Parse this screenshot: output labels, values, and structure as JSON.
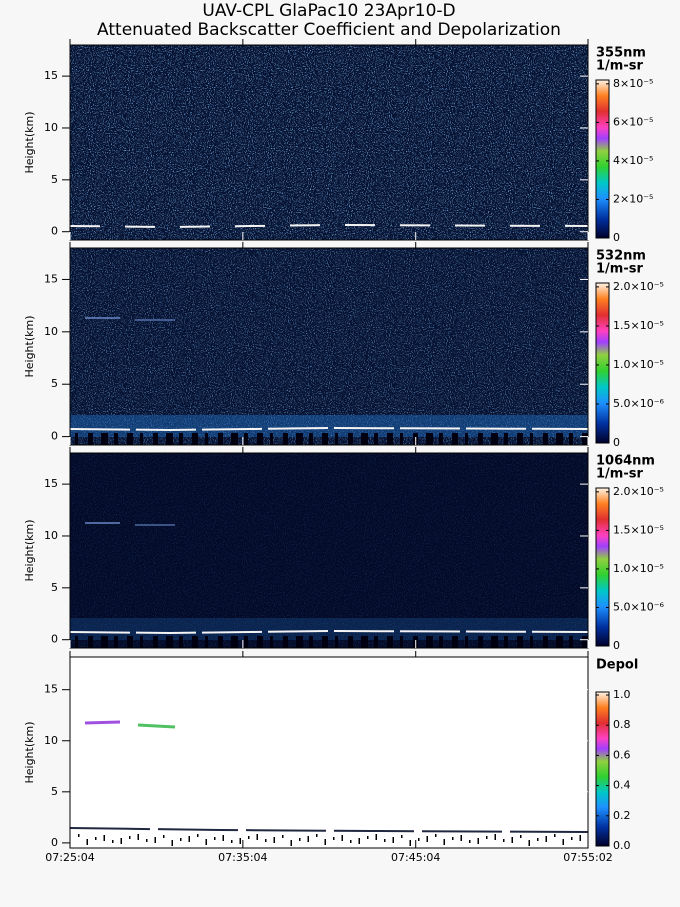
{
  "title": [
    "UAV-CPL GlaPac10 23Apr10-D",
    "Attenuated Backscatter Coefficient and Depolarization"
  ],
  "x_axis": {
    "xlim": [
      "07:25:04",
      "07:55:02"
    ],
    "xticks": [
      "07:25:04",
      "07:35:04",
      "07:45:04",
      "07:55:02"
    ]
  },
  "chart_data": [
    {
      "type": "curtain",
      "ylabel": "Height(km)",
      "ylim": [
        -0.8,
        18
      ],
      "yticks": [
        0,
        5,
        10,
        15
      ],
      "colorbar": {
        "title": [
          "355nm",
          "1/m-sr"
        ],
        "lim": [
          0,
          8.2e-05
        ],
        "ticks": [
          0,
          {
            "value": 2e-05,
            "label": "2×10⁻⁵"
          },
          {
            "value": 4e-05,
            "label": "4×10⁻⁵"
          },
          {
            "value": 6e-05,
            "label": "6×10⁻⁵"
          },
          {
            "value": 8e-05,
            "label": "8×10⁻⁵"
          }
        ]
      }
    },
    {
      "type": "curtain",
      "ylabel": "Height(km)",
      "ylim": [
        -0.8,
        18
      ],
      "yticks": [
        0,
        5,
        10,
        15
      ],
      "colorbar": {
        "title": [
          "532nm",
          "1/m-sr"
        ],
        "lim": [
          0,
          2.05e-05
        ],
        "ticks": [
          0,
          {
            "value": 5e-06,
            "label": "5.0×10⁻⁶"
          },
          {
            "value": 1e-05,
            "label": "1.0×10⁻⁵"
          },
          {
            "value": 1.5e-05,
            "label": "1.5×10⁻⁵"
          },
          {
            "value": 2e-05,
            "label": "2.0×10⁻⁵"
          }
        ]
      }
    },
    {
      "type": "curtain",
      "ylabel": "Height(km)",
      "ylim": [
        -0.8,
        18
      ],
      "yticks": [
        0,
        5,
        10,
        15
      ],
      "colorbar": {
        "title": [
          "1064nm",
          "1/m-sr"
        ],
        "lim": [
          0,
          2.05e-05
        ],
        "ticks": [
          0,
          {
            "value": 5e-06,
            "label": "5.0×10⁻⁶"
          },
          {
            "value": 1e-05,
            "label": "1.0×10⁻⁵"
          },
          {
            "value": 1.5e-05,
            "label": "1.5×10⁻⁵"
          },
          {
            "value": 2e-05,
            "label": "2.0×10⁻⁵"
          }
        ]
      }
    },
    {
      "type": "depol",
      "ylabel": "Height(km)",
      "ylim": [
        -0.5,
        18.2
      ],
      "yticks": [
        0,
        5,
        10,
        15
      ],
      "colorbar": {
        "title": [
          "Depol"
        ],
        "lim": [
          0,
          1.02
        ],
        "ticks": [
          {
            "value": 0,
            "label": "0.0"
          },
          0.2,
          0.4,
          0.6,
          0.8,
          {
            "value": 1,
            "label": "1.0"
          }
        ]
      }
    }
  ]
}
